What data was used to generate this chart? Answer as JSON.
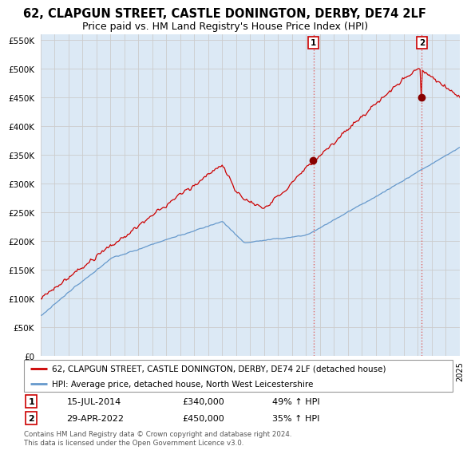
{
  "title": "62, CLAPGUN STREET, CASTLE DONINGTON, DERBY, DE74 2LF",
  "subtitle": "Price paid vs. HM Land Registry's House Price Index (HPI)",
  "red_label": "62, CLAPGUN STREET, CASTLE DONINGTON, DERBY, DE74 2LF (detached house)",
  "blue_label": "HPI: Average price, detached house, North West Leicestershire",
  "sale1_date": "15-JUL-2014",
  "sale1_price": "£340,000",
  "sale1_hpi": "49% ↑ HPI",
  "sale2_date": "29-APR-2022",
  "sale2_price": "£450,000",
  "sale2_hpi": "35% ↑ HPI",
  "footer": "Contains HM Land Registry data © Crown copyright and database right 2024.\nThis data is licensed under the Open Government Licence v3.0.",
  "ylim_min": 0,
  "ylim_max": 560000,
  "start_year": 1995,
  "end_year": 2025,
  "red_color": "#cc0000",
  "blue_color": "#6699cc",
  "vline_color": "#dd6666",
  "grid_color": "#cccccc",
  "bg_color": "#ffffff",
  "plot_bg_color": "#dce9f5",
  "sale1_year": 2014.54,
  "sale2_year": 2022.29,
  "sale1_value": 340000,
  "sale2_value": 450000
}
